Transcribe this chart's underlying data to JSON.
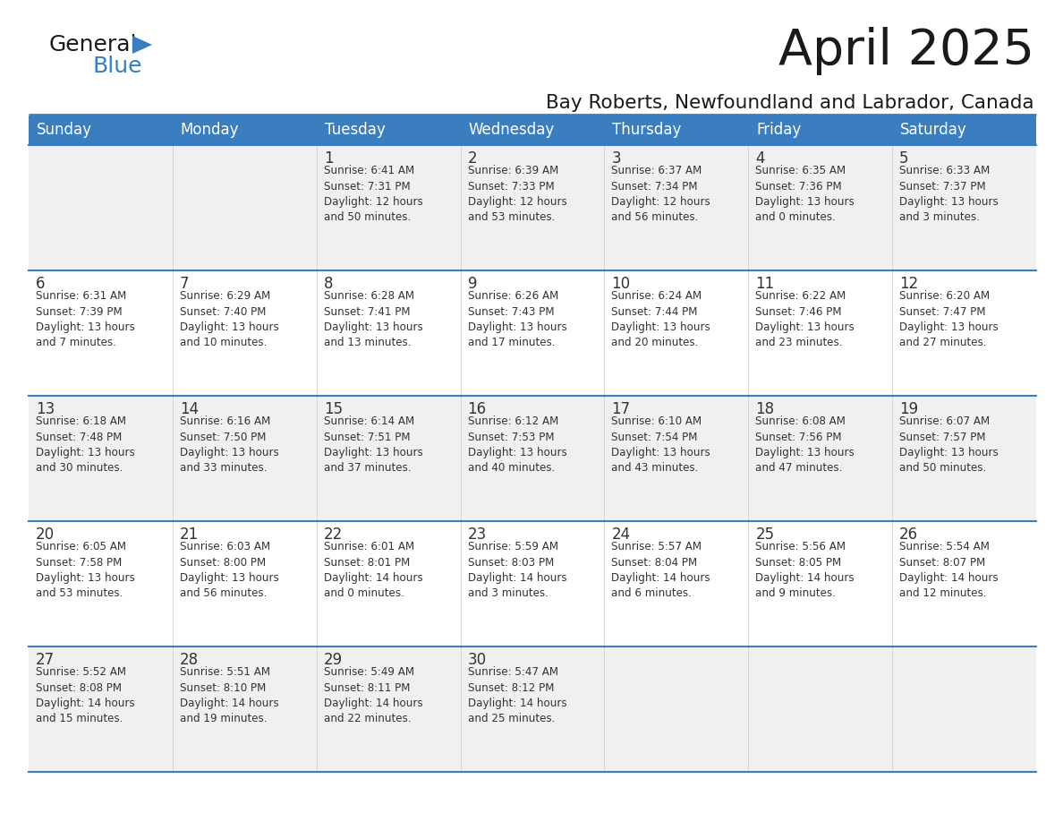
{
  "title": "April 2025",
  "subtitle": "Bay Roberts, Newfoundland and Labrador, Canada",
  "days_of_week": [
    "Sunday",
    "Monday",
    "Tuesday",
    "Wednesday",
    "Thursday",
    "Friday",
    "Saturday"
  ],
  "header_bg": "#3a7ebf",
  "header_text": "#ffffff",
  "row_bg_odd": "#f0f0f0",
  "row_bg_even": "#ffffff",
  "separator_color": "#3a7ebf",
  "text_color": "#333333",
  "calendar_data": [
    [
      {
        "day": "",
        "info": ""
      },
      {
        "day": "",
        "info": ""
      },
      {
        "day": "1",
        "info": "Sunrise: 6:41 AM\nSunset: 7:31 PM\nDaylight: 12 hours\nand 50 minutes."
      },
      {
        "day": "2",
        "info": "Sunrise: 6:39 AM\nSunset: 7:33 PM\nDaylight: 12 hours\nand 53 minutes."
      },
      {
        "day": "3",
        "info": "Sunrise: 6:37 AM\nSunset: 7:34 PM\nDaylight: 12 hours\nand 56 minutes."
      },
      {
        "day": "4",
        "info": "Sunrise: 6:35 AM\nSunset: 7:36 PM\nDaylight: 13 hours\nand 0 minutes."
      },
      {
        "day": "5",
        "info": "Sunrise: 6:33 AM\nSunset: 7:37 PM\nDaylight: 13 hours\nand 3 minutes."
      }
    ],
    [
      {
        "day": "6",
        "info": "Sunrise: 6:31 AM\nSunset: 7:39 PM\nDaylight: 13 hours\nand 7 minutes."
      },
      {
        "day": "7",
        "info": "Sunrise: 6:29 AM\nSunset: 7:40 PM\nDaylight: 13 hours\nand 10 minutes."
      },
      {
        "day": "8",
        "info": "Sunrise: 6:28 AM\nSunset: 7:41 PM\nDaylight: 13 hours\nand 13 minutes."
      },
      {
        "day": "9",
        "info": "Sunrise: 6:26 AM\nSunset: 7:43 PM\nDaylight: 13 hours\nand 17 minutes."
      },
      {
        "day": "10",
        "info": "Sunrise: 6:24 AM\nSunset: 7:44 PM\nDaylight: 13 hours\nand 20 minutes."
      },
      {
        "day": "11",
        "info": "Sunrise: 6:22 AM\nSunset: 7:46 PM\nDaylight: 13 hours\nand 23 minutes."
      },
      {
        "day": "12",
        "info": "Sunrise: 6:20 AM\nSunset: 7:47 PM\nDaylight: 13 hours\nand 27 minutes."
      }
    ],
    [
      {
        "day": "13",
        "info": "Sunrise: 6:18 AM\nSunset: 7:48 PM\nDaylight: 13 hours\nand 30 minutes."
      },
      {
        "day": "14",
        "info": "Sunrise: 6:16 AM\nSunset: 7:50 PM\nDaylight: 13 hours\nand 33 minutes."
      },
      {
        "day": "15",
        "info": "Sunrise: 6:14 AM\nSunset: 7:51 PM\nDaylight: 13 hours\nand 37 minutes."
      },
      {
        "day": "16",
        "info": "Sunrise: 6:12 AM\nSunset: 7:53 PM\nDaylight: 13 hours\nand 40 minutes."
      },
      {
        "day": "17",
        "info": "Sunrise: 6:10 AM\nSunset: 7:54 PM\nDaylight: 13 hours\nand 43 minutes."
      },
      {
        "day": "18",
        "info": "Sunrise: 6:08 AM\nSunset: 7:56 PM\nDaylight: 13 hours\nand 47 minutes."
      },
      {
        "day": "19",
        "info": "Sunrise: 6:07 AM\nSunset: 7:57 PM\nDaylight: 13 hours\nand 50 minutes."
      }
    ],
    [
      {
        "day": "20",
        "info": "Sunrise: 6:05 AM\nSunset: 7:58 PM\nDaylight: 13 hours\nand 53 minutes."
      },
      {
        "day": "21",
        "info": "Sunrise: 6:03 AM\nSunset: 8:00 PM\nDaylight: 13 hours\nand 56 minutes."
      },
      {
        "day": "22",
        "info": "Sunrise: 6:01 AM\nSunset: 8:01 PM\nDaylight: 14 hours\nand 0 minutes."
      },
      {
        "day": "23",
        "info": "Sunrise: 5:59 AM\nSunset: 8:03 PM\nDaylight: 14 hours\nand 3 minutes."
      },
      {
        "day": "24",
        "info": "Sunrise: 5:57 AM\nSunset: 8:04 PM\nDaylight: 14 hours\nand 6 minutes."
      },
      {
        "day": "25",
        "info": "Sunrise: 5:56 AM\nSunset: 8:05 PM\nDaylight: 14 hours\nand 9 minutes."
      },
      {
        "day": "26",
        "info": "Sunrise: 5:54 AM\nSunset: 8:07 PM\nDaylight: 14 hours\nand 12 minutes."
      }
    ],
    [
      {
        "day": "27",
        "info": "Sunrise: 5:52 AM\nSunset: 8:08 PM\nDaylight: 14 hours\nand 15 minutes."
      },
      {
        "day": "28",
        "info": "Sunrise: 5:51 AM\nSunset: 8:10 PM\nDaylight: 14 hours\nand 19 minutes."
      },
      {
        "day": "29",
        "info": "Sunrise: 5:49 AM\nSunset: 8:11 PM\nDaylight: 14 hours\nand 22 minutes."
      },
      {
        "day": "30",
        "info": "Sunrise: 5:47 AM\nSunset: 8:12 PM\nDaylight: 14 hours\nand 25 minutes."
      },
      {
        "day": "",
        "info": ""
      },
      {
        "day": "",
        "info": ""
      },
      {
        "day": "",
        "info": ""
      }
    ]
  ],
  "logo_text_general": "General",
  "logo_text_blue": "Blue",
  "logo_color_general": "#1a1a1a",
  "logo_color_blue": "#3a7ebf",
  "logo_triangle_color": "#3a7ebf",
  "fig_width": 11.88,
  "fig_height": 9.18,
  "dpi": 100
}
